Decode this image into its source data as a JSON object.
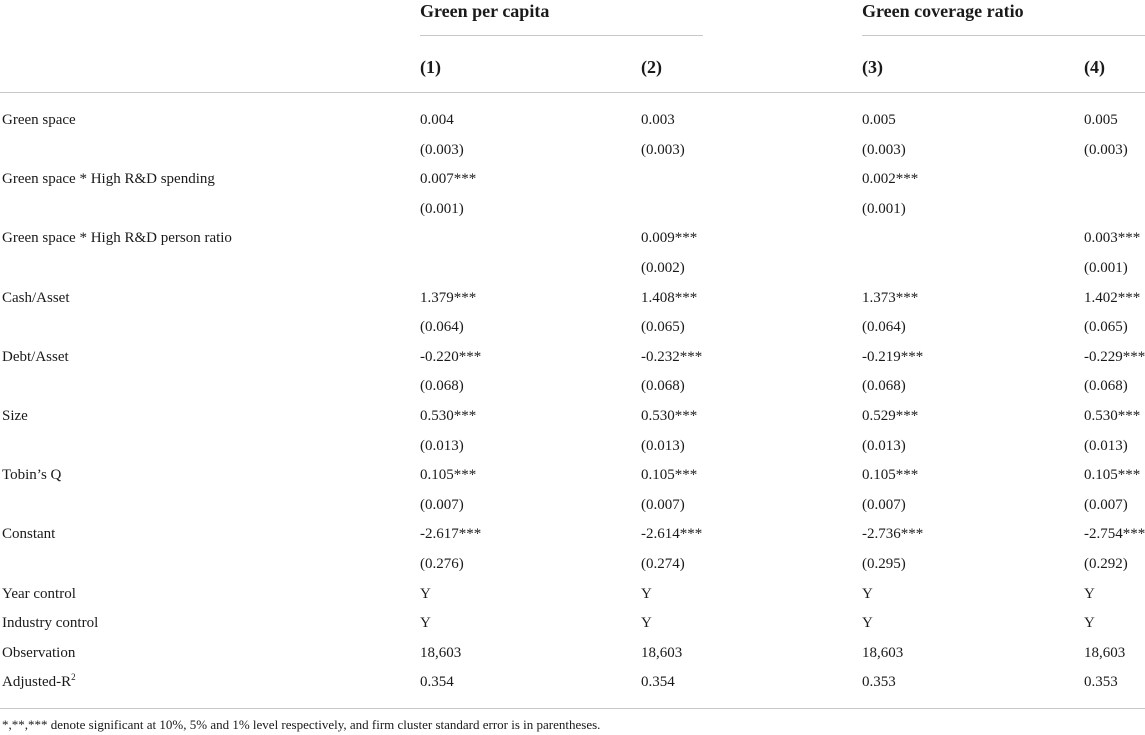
{
  "groups": [
    {
      "title": "Green per capita"
    },
    {
      "title": "Green coverage ratio"
    }
  ],
  "columns": [
    "(1)",
    "(2)",
    "(3)",
    "(4)"
  ],
  "rows": [
    {
      "label": "Green space",
      "values": [
        "0.004",
        "0.003",
        "0.005",
        "0.005"
      ]
    },
    {
      "label": "",
      "values": [
        "(0.003)",
        "(0.003)",
        "(0.003)",
        "(0.003)"
      ]
    },
    {
      "label": "Green space * High R&D spending",
      "values": [
        "0.007***",
        "",
        "0.002***",
        ""
      ]
    },
    {
      "label": "",
      "values": [
        "(0.001)",
        "",
        "(0.001)",
        ""
      ]
    },
    {
      "label": "Green space * High R&D person ratio",
      "values": [
        "",
        "0.009***",
        "",
        "0.003***"
      ]
    },
    {
      "label": "",
      "values": [
        "",
        "(0.002)",
        "",
        "(0.001)"
      ]
    },
    {
      "label": "Cash/Asset",
      "values": [
        "1.379***",
        "1.408***",
        "1.373***",
        "1.402***"
      ]
    },
    {
      "label": "",
      "values": [
        "(0.064)",
        "(0.065)",
        "(0.064)",
        "(0.065)"
      ]
    },
    {
      "label": "Debt/Asset",
      "values": [
        "-0.220***",
        "-0.232***",
        "-0.219***",
        "-0.229***"
      ]
    },
    {
      "label": "",
      "values": [
        "(0.068)",
        "(0.068)",
        "(0.068)",
        "(0.068)"
      ]
    },
    {
      "label": "Size",
      "values": [
        "0.530***",
        "0.530***",
        "0.529***",
        "0.530***"
      ]
    },
    {
      "label": "",
      "values": [
        "(0.013)",
        "(0.013)",
        "(0.013)",
        "(0.013)"
      ]
    },
    {
      "label": "Tobin’s Q",
      "values": [
        "0.105***",
        "0.105***",
        "0.105***",
        "0.105***"
      ]
    },
    {
      "label": "",
      "values": [
        "(0.007)",
        "(0.007)",
        "(0.007)",
        "(0.007)"
      ]
    },
    {
      "label": "Constant",
      "values": [
        "-2.617***",
        "-2.614***",
        "-2.736***",
        "-2.754***"
      ]
    },
    {
      "label": "",
      "values": [
        "(0.276)",
        "(0.274)",
        "(0.295)",
        "(0.292)"
      ]
    },
    {
      "label": "Year control",
      "values": [
        "Y",
        "Y",
        "Y",
        "Y"
      ]
    },
    {
      "label": "Industry control",
      "values": [
        "Y",
        "Y",
        "Y",
        "Y"
      ]
    },
    {
      "label": "Observation",
      "values": [
        "18,603",
        "18,603",
        "18,603",
        "18,603"
      ]
    },
    {
      "label": "Adjusted-R",
      "label_sup": "2",
      "values": [
        "0.354",
        "0.354",
        "0.353",
        "0.353"
      ]
    }
  ],
  "note": "*,**,*** denote significant at 10%, 5% and 1% level respectively, and firm cluster standard error is in parentheses."
}
